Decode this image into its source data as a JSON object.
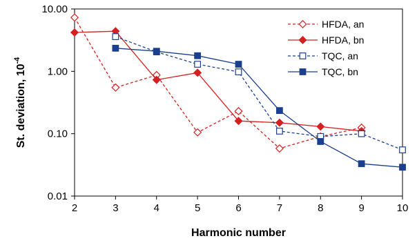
{
  "chart_data": {
    "type": "line",
    "xlabel": "Harmonic number",
    "ylabel": "St. deviation, 10",
    "ylabel_exponent": "-4",
    "x_scale": "linear",
    "y_scale": "log",
    "xlim": [
      2,
      10
    ],
    "ylim": [
      0.01,
      10
    ],
    "x_ticks": [
      "2",
      "3",
      "4",
      "5",
      "6",
      "7",
      "8",
      "9",
      "10"
    ],
    "y_ticks": [
      "0.01",
      "0.10",
      "1.00",
      "10.00"
    ],
    "grid": false,
    "legend_position": "top-right",
    "series": [
      {
        "name": "HFDA, an",
        "color": "#d42020",
        "line": "dashed",
        "marker": "diamond-open",
        "x": [
          2,
          3,
          4,
          5,
          6,
          7,
          8,
          9
        ],
        "y": [
          7.3,
          0.55,
          0.87,
          0.105,
          0.23,
          0.058,
          0.09,
          0.125
        ]
      },
      {
        "name": "HFDA, bn",
        "color": "#d42020",
        "line": "solid",
        "marker": "diamond-filled",
        "x": [
          2,
          3,
          4,
          5,
          6,
          7,
          8,
          9
        ],
        "y": [
          4.2,
          4.4,
          0.73,
          0.95,
          0.16,
          0.15,
          0.13,
          0.11
        ]
      },
      {
        "name": "TQC, an",
        "color": "#1a3f8c",
        "line": "dashed",
        "marker": "square-open",
        "x": [
          3,
          4,
          5,
          6,
          7,
          8,
          9,
          10
        ],
        "y": [
          3.6,
          2.05,
          1.3,
          0.98,
          0.11,
          0.09,
          0.1,
          0.055
        ]
      },
      {
        "name": "TQC, bn",
        "color": "#1a3f8c",
        "line": "solid",
        "marker": "square-filled",
        "x": [
          3,
          4,
          5,
          6,
          7,
          8,
          9,
          10
        ],
        "y": [
          2.35,
          2.1,
          1.78,
          1.3,
          0.235,
          0.075,
          0.033,
          0.029
        ]
      }
    ]
  }
}
